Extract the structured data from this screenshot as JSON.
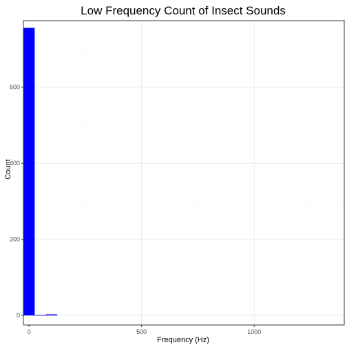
{
  "chart_data": {
    "type": "bar",
    "title": "Low Frequency Count of Insect Sounds",
    "xlabel": "Frequency (Hz)",
    "ylabel": "Count",
    "xlim": [
      -25,
      1400
    ],
    "ylim": [
      -25,
      775
    ],
    "x_ticks": [
      0,
      500,
      1000
    ],
    "x_tick_labels": [
      "0",
      "500",
      "1000"
    ],
    "y_ticks": [
      0,
      200,
      400,
      600
    ],
    "y_tick_labels": [
      "0",
      "200",
      "400",
      "600"
    ],
    "x_minor_grid": [
      250,
      750,
      1250
    ],
    "y_minor_grid": [
      100,
      300,
      500,
      700
    ],
    "grid": true,
    "bin_width": 50,
    "bins": [
      {
        "x_start": -25,
        "x_end": 25,
        "count": 756
      },
      {
        "x_start": 25,
        "x_end": 75,
        "count": 1
      },
      {
        "x_start": 75,
        "x_end": 125,
        "count": 3
      }
    ]
  },
  "colors": {
    "bar_fill": "#0000ff",
    "panel_border": "#333333",
    "grid_major": "#ebebeb",
    "grid_minor": "#f5f5f5",
    "tick_label": "#4d4d4d"
  }
}
